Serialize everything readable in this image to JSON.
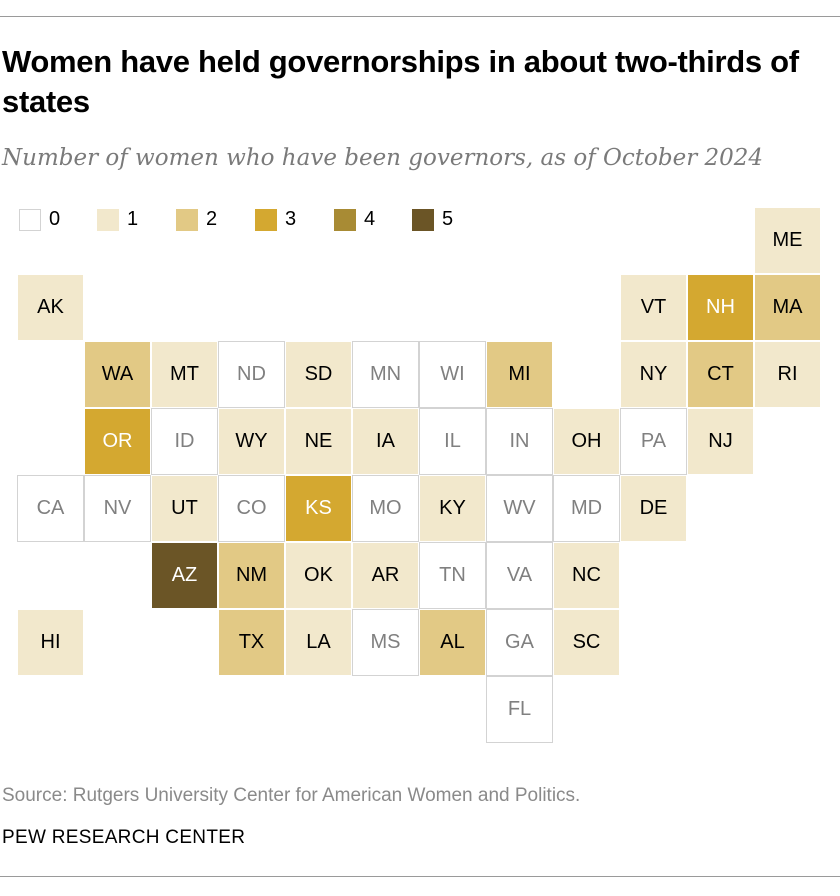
{
  "title": "Women have held governorships in about two-thirds of states",
  "subtitle": "Number of women who have been governors, as of October 2024",
  "source": "Source: Rutgers University Center for American Women and Politics.",
  "brand": "PEW RESEARCH CENTER",
  "colors": {
    "0": "#ffffff",
    "1": "#f2e8cc",
    "2": "#e2c985",
    "3": "#d4a830",
    "4": "#a88b34",
    "5": "#6b5526",
    "border_zero": "#d3d3d3",
    "text_dark": "#000000",
    "text_light": "#ffffff",
    "text_muted": "#808080"
  },
  "chart_data": {
    "type": "tile-map",
    "legend": [
      {
        "label": "0",
        "value": 0
      },
      {
        "label": "1",
        "value": 1
      },
      {
        "label": "2",
        "value": 2
      },
      {
        "label": "3",
        "value": 3
      },
      {
        "label": "4",
        "value": 4
      },
      {
        "label": "5",
        "value": 5
      }
    ],
    "states": [
      {
        "abbr": "ME",
        "value": 1,
        "row": 0,
        "col": 11
      },
      {
        "abbr": "AK",
        "value": 1,
        "row": 1,
        "col": 0
      },
      {
        "abbr": "VT",
        "value": 1,
        "row": 1,
        "col": 9
      },
      {
        "abbr": "NH",
        "value": 3,
        "row": 1,
        "col": 10
      },
      {
        "abbr": "MA",
        "value": 2,
        "row": 1,
        "col": 11
      },
      {
        "abbr": "WA",
        "value": 2,
        "row": 2,
        "col": 1
      },
      {
        "abbr": "MT",
        "value": 1,
        "row": 2,
        "col": 2
      },
      {
        "abbr": "ND",
        "value": 0,
        "row": 2,
        "col": 3
      },
      {
        "abbr": "SD",
        "value": 1,
        "row": 2,
        "col": 4
      },
      {
        "abbr": "MN",
        "value": 0,
        "row": 2,
        "col": 5
      },
      {
        "abbr": "WI",
        "value": 0,
        "row": 2,
        "col": 6
      },
      {
        "abbr": "MI",
        "value": 2,
        "row": 2,
        "col": 7
      },
      {
        "abbr": "NY",
        "value": 1,
        "row": 2,
        "col": 9
      },
      {
        "abbr": "CT",
        "value": 2,
        "row": 2,
        "col": 10
      },
      {
        "abbr": "RI",
        "value": 1,
        "row": 2,
        "col": 11
      },
      {
        "abbr": "OR",
        "value": 3,
        "row": 3,
        "col": 1
      },
      {
        "abbr": "ID",
        "value": 0,
        "row": 3,
        "col": 2
      },
      {
        "abbr": "WY",
        "value": 1,
        "row": 3,
        "col": 3
      },
      {
        "abbr": "NE",
        "value": 1,
        "row": 3,
        "col": 4
      },
      {
        "abbr": "IA",
        "value": 1,
        "row": 3,
        "col": 5
      },
      {
        "abbr": "IL",
        "value": 0,
        "row": 3,
        "col": 6
      },
      {
        "abbr": "IN",
        "value": 0,
        "row": 3,
        "col": 7
      },
      {
        "abbr": "OH",
        "value": 1,
        "row": 3,
        "col": 8
      },
      {
        "abbr": "PA",
        "value": 0,
        "row": 3,
        "col": 9
      },
      {
        "abbr": "NJ",
        "value": 1,
        "row": 3,
        "col": 10
      },
      {
        "abbr": "CA",
        "value": 0,
        "row": 4,
        "col": 0
      },
      {
        "abbr": "NV",
        "value": 0,
        "row": 4,
        "col": 1
      },
      {
        "abbr": "UT",
        "value": 1,
        "row": 4,
        "col": 2
      },
      {
        "abbr": "CO",
        "value": 0,
        "row": 4,
        "col": 3
      },
      {
        "abbr": "KS",
        "value": 3,
        "row": 4,
        "col": 4
      },
      {
        "abbr": "MO",
        "value": 0,
        "row": 4,
        "col": 5
      },
      {
        "abbr": "KY",
        "value": 1,
        "row": 4,
        "col": 6
      },
      {
        "abbr": "WV",
        "value": 0,
        "row": 4,
        "col": 7
      },
      {
        "abbr": "MD",
        "value": 0,
        "row": 4,
        "col": 8
      },
      {
        "abbr": "DE",
        "value": 1,
        "row": 4,
        "col": 9
      },
      {
        "abbr": "AZ",
        "value": 5,
        "row": 5,
        "col": 2
      },
      {
        "abbr": "NM",
        "value": 2,
        "row": 5,
        "col": 3
      },
      {
        "abbr": "OK",
        "value": 1,
        "row": 5,
        "col": 4
      },
      {
        "abbr": "AR",
        "value": 1,
        "row": 5,
        "col": 5
      },
      {
        "abbr": "TN",
        "value": 0,
        "row": 5,
        "col": 6
      },
      {
        "abbr": "VA",
        "value": 0,
        "row": 5,
        "col": 7
      },
      {
        "abbr": "NC",
        "value": 1,
        "row": 5,
        "col": 8
      },
      {
        "abbr": "HI",
        "value": 1,
        "row": 6,
        "col": 0
      },
      {
        "abbr": "TX",
        "value": 2,
        "row": 6,
        "col": 3
      },
      {
        "abbr": "LA",
        "value": 1,
        "row": 6,
        "col": 4
      },
      {
        "abbr": "MS",
        "value": 0,
        "row": 6,
        "col": 5
      },
      {
        "abbr": "AL",
        "value": 2,
        "row": 6,
        "col": 6
      },
      {
        "abbr": "GA",
        "value": 0,
        "row": 6,
        "col": 7
      },
      {
        "abbr": "SC",
        "value": 1,
        "row": 6,
        "col": 8
      },
      {
        "abbr": "FL",
        "value": 0,
        "row": 7,
        "col": 7
      }
    ]
  }
}
